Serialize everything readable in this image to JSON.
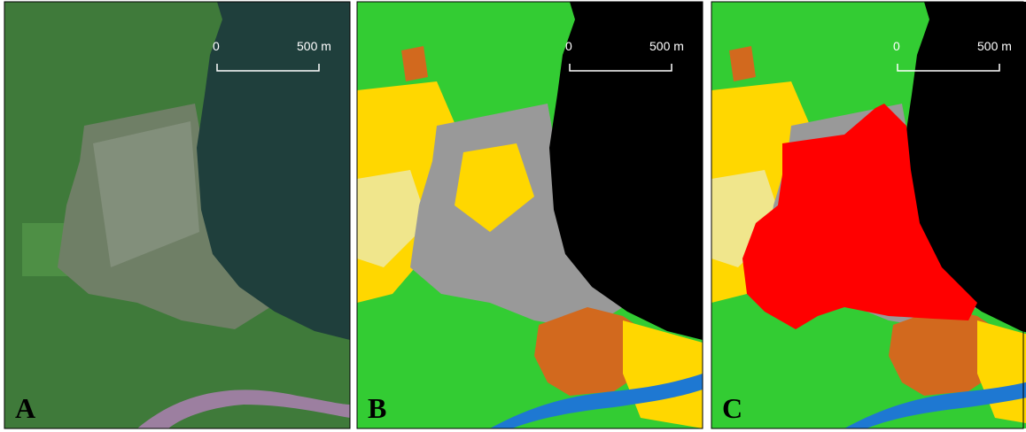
{
  "panels": [
    {
      "label": "A",
      "scale_start": "0",
      "scale_end": "500 m"
    },
    {
      "label": "B",
      "scale_start": "0",
      "scale_end": "500 m"
    },
    {
      "label": "C",
      "scale_start": "0",
      "scale_end": "500 m"
    }
  ]
}
